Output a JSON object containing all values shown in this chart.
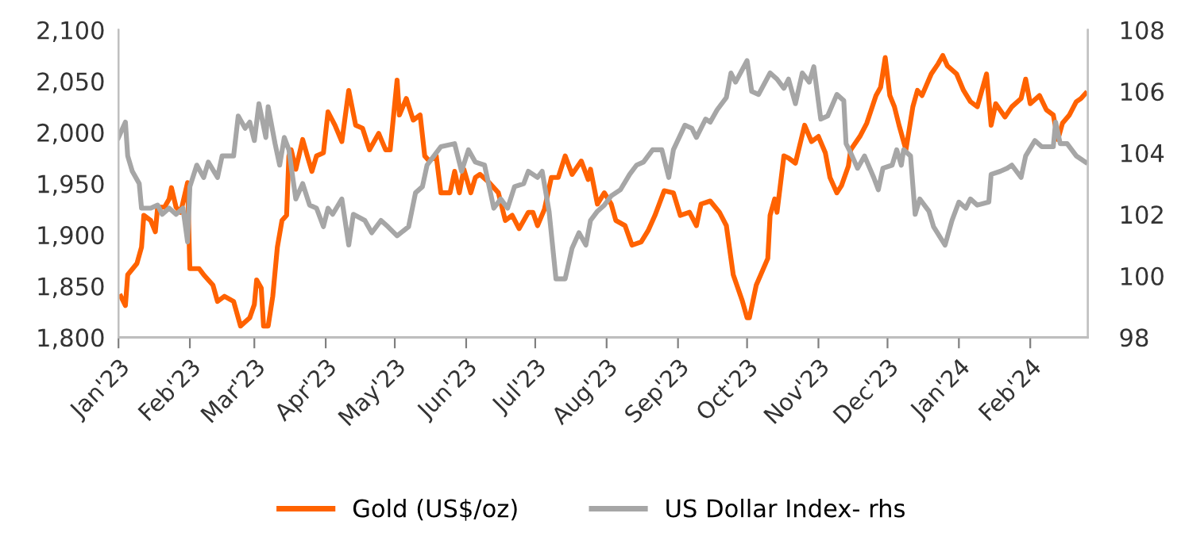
{
  "chart_data": {
    "type": "line",
    "xlim": [
      "2023-01-01",
      "2024-02-26"
    ],
    "xticks": [
      {
        "value": "2023-01-01",
        "label": "Jan'23"
      },
      {
        "value": "2023-02-01",
        "label": "Feb'23"
      },
      {
        "value": "2023-03-01",
        "label": "Mar'23"
      },
      {
        "value": "2023-04-01",
        "label": "Apr'23"
      },
      {
        "value": "2023-05-01",
        "label": "May'23"
      },
      {
        "value": "2023-06-01",
        "label": "Jun'23"
      },
      {
        "value": "2023-07-01",
        "label": "Jul'23"
      },
      {
        "value": "2023-08-01",
        "label": "Aug'23"
      },
      {
        "value": "2023-09-01",
        "label": "Sep'23"
      },
      {
        "value": "2023-10-01",
        "label": "Oct'23"
      },
      {
        "value": "2023-11-01",
        "label": "Nov'23"
      },
      {
        "value": "2023-12-01",
        "label": "Dec'23"
      },
      {
        "value": "2024-01-01",
        "label": "Jan'24"
      },
      {
        "value": "2024-02-01",
        "label": "Feb'24"
      }
    ],
    "ylim": [
      1800,
      2100
    ],
    "yticks": [
      {
        "value": 1800,
        "label": "1,800"
      },
      {
        "value": 1850,
        "label": "1,850"
      },
      {
        "value": 1900,
        "label": "1,900"
      },
      {
        "value": 1950,
        "label": "1,950"
      },
      {
        "value": 2000,
        "label": "2,000"
      },
      {
        "value": 2050,
        "label": "2,050"
      },
      {
        "value": 2100,
        "label": "2,100"
      }
    ],
    "y2lim": [
      98,
      108
    ],
    "y2ticks": [
      98,
      100,
      102,
      104,
      106,
      108
    ],
    "grid": false,
    "legend": "bottom",
    "marker": "none",
    "line_style": "solid",
    "series": [
      {
        "name": "Gold (US$/oz)",
        "color": "#ff6200",
        "axis": "y",
        "x": [
          "2023-01-02",
          "2023-01-04",
          "2023-01-05",
          "2023-01-09",
          "2023-01-11",
          "2023-01-12",
          "2023-01-15",
          "2023-01-17",
          "2023-01-18",
          "2023-01-21",
          "2023-01-23",
          "2023-01-24",
          "2023-01-26",
          "2023-01-28",
          "2023-01-31",
          "2023-02-01",
          "2023-02-05",
          "2023-02-07",
          "2023-02-11",
          "2023-02-13",
          "2023-02-16",
          "2023-02-20",
          "2023-02-23",
          "2023-02-27",
          "2023-03-01",
          "2023-03-02",
          "2023-03-04",
          "2023-03-05",
          "2023-03-07",
          "2023-03-09",
          "2023-03-11",
          "2023-03-13",
          "2023-03-15",
          "2023-03-16",
          "2023-03-17",
          "2023-03-19",
          "2023-03-22",
          "2023-03-24",
          "2023-03-26",
          "2023-03-28",
          "2023-03-31",
          "2023-04-02",
          "2023-04-05",
          "2023-04-08",
          "2023-04-11",
          "2023-04-14",
          "2023-04-17",
          "2023-04-20",
          "2023-04-24",
          "2023-04-27",
          "2023-04-29",
          "2023-05-02",
          "2023-05-03",
          "2023-05-06",
          "2023-05-09",
          "2023-05-12",
          "2023-05-14",
          "2023-05-16",
          "2023-05-19",
          "2023-05-21",
          "2023-05-25",
          "2023-05-27",
          "2023-05-29",
          "2023-05-31",
          "2023-06-03",
          "2023-06-05",
          "2023-06-07",
          "2023-06-11",
          "2023-06-15",
          "2023-06-18",
          "2023-06-21",
          "2023-06-24",
          "2023-06-28",
          "2023-06-30",
          "2023-07-02",
          "2023-07-05",
          "2023-07-08",
          "2023-07-11",
          "2023-07-14",
          "2023-07-17",
          "2023-07-21",
          "2023-07-24",
          "2023-07-25",
          "2023-07-28",
          "2023-07-31",
          "2023-08-03",
          "2023-08-05",
          "2023-08-09",
          "2023-08-12",
          "2023-08-16",
          "2023-08-19",
          "2023-08-22",
          "2023-08-26",
          "2023-08-30",
          "2023-09-02",
          "2023-09-06",
          "2023-09-09",
          "2023-09-11",
          "2023-09-15",
          "2023-09-19",
          "2023-09-22",
          "2023-09-25",
          "2023-09-29",
          "2023-10-01",
          "2023-10-02",
          "2023-10-05",
          "2023-10-10",
          "2023-10-11",
          "2023-10-13",
          "2023-10-14",
          "2023-10-17",
          "2023-10-19",
          "2023-10-22",
          "2023-10-26",
          "2023-10-29",
          "2023-11-01",
          "2023-11-04",
          "2023-11-06",
          "2023-11-09",
          "2023-11-11",
          "2023-11-14",
          "2023-11-15",
          "2023-11-19",
          "2023-11-22",
          "2023-11-26",
          "2023-11-28",
          "2023-11-30",
          "2023-12-02",
          "2023-12-04",
          "2023-12-06",
          "2023-12-09",
          "2023-12-12",
          "2023-12-14",
          "2023-12-16",
          "2023-12-20",
          "2023-12-23",
          "2023-12-25",
          "2023-12-27",
          "2023-12-31",
          "2024-01-03",
          "2024-01-06",
          "2024-01-09",
          "2024-01-13",
          "2024-01-15",
          "2024-01-17",
          "2024-01-21",
          "2024-01-24",
          "2024-01-28",
          "2024-01-30",
          "2024-02-01",
          "2024-02-05",
          "2024-02-08",
          "2024-02-11",
          "2024-02-13",
          "2024-02-15",
          "2024-02-18",
          "2024-02-21",
          "2024-02-23",
          "2024-02-25"
        ],
        "values": [
          1840,
          1831,
          1861,
          1872,
          1888,
          1919,
          1914,
          1903,
          1927,
          1927,
          1935,
          1946,
          1927,
          1922,
          1951,
          1867,
          1867,
          1861,
          1851,
          1835,
          1840,
          1835,
          1811,
          1819,
          1832,
          1856,
          1848,
          1811,
          1811,
          1840,
          1888,
          1914,
          1919,
          1977,
          1983,
          1964,
          1993,
          1977,
          1962,
          1977,
          1980,
          2020,
          2007,
          1991,
          2041,
          2007,
          2004,
          1983,
          1999,
          1983,
          1983,
          2051,
          2017,
          2033,
          2012,
          2017,
          1977,
          1972,
          1977,
          1941,
          1941,
          1962,
          1941,
          1964,
          1941,
          1956,
          1959,
          1951,
          1941,
          1914,
          1919,
          1906,
          1922,
          1922,
          1909,
          1925,
          1956,
          1956,
          1977,
          1959,
          1972,
          1954,
          1964,
          1930,
          1941,
          1930,
          1914,
          1909,
          1890,
          1893,
          1904,
          1919,
          1943,
          1941,
          1919,
          1922,
          1909,
          1930,
          1933,
          1922,
          1909,
          1861,
          1835,
          1819,
          1819,
          1851,
          1877,
          1919,
          1935,
          1922,
          1977,
          1975,
          1970,
          2007,
          1991,
          1996,
          1980,
          1956,
          1941,
          1948,
          1967,
          1983,
          1996,
          2009,
          2036,
          2044,
          2073,
          2036,
          2025,
          2007,
          1983,
          2025,
          2041,
          2036,
          2057,
          2067,
          2075,
          2065,
          2057,
          2041,
          2030,
          2025,
          2057,
          2007,
          2028,
          2015,
          2025,
          2033,
          2052,
          2028,
          2036,
          2022,
          2017,
          1993,
          2009,
          2017,
          2030,
          2033,
          2038
        ]
      },
      {
        "name": "US Dollar Index- rhs",
        "color": "#a6a6a6",
        "axis": "y2",
        "x": [
          "2023-01-01",
          "2023-01-04",
          "2023-01-05",
          "2023-01-07",
          "2023-01-10",
          "2023-01-11",
          "2023-01-15",
          "2023-01-18",
          "2023-01-20",
          "2023-01-23",
          "2023-01-26",
          "2023-01-29",
          "2023-01-31",
          "2023-02-01",
          "2023-02-04",
          "2023-02-07",
          "2023-02-09",
          "2023-02-13",
          "2023-02-15",
          "2023-02-20",
          "2023-02-22",
          "2023-02-25",
          "2023-02-27",
          "2023-03-01",
          "2023-03-03",
          "2023-03-06",
          "2023-03-07",
          "2023-03-10",
          "2023-03-12",
          "2023-03-14",
          "2023-03-16",
          "2023-03-19",
          "2023-03-22",
          "2023-03-25",
          "2023-03-28",
          "2023-03-31",
          "2023-04-02",
          "2023-04-04",
          "2023-04-08",
          "2023-04-11",
          "2023-04-13",
          "2023-04-18",
          "2023-04-21",
          "2023-04-25",
          "2023-04-28",
          "2023-05-02",
          "2023-05-07",
          "2023-05-10",
          "2023-05-13",
          "2023-05-15",
          "2023-05-18",
          "2023-05-21",
          "2023-05-27",
          "2023-05-30",
          "2023-06-02",
          "2023-06-05",
          "2023-06-09",
          "2023-06-13",
          "2023-06-16",
          "2023-06-19",
          "2023-06-22",
          "2023-06-26",
          "2023-06-28",
          "2023-07-02",
          "2023-07-04",
          "2023-07-07",
          "2023-07-10",
          "2023-07-14",
          "2023-07-17",
          "2023-07-20",
          "2023-07-23",
          "2023-07-25",
          "2023-07-28",
          "2023-07-31",
          "2023-08-03",
          "2023-08-07",
          "2023-08-11",
          "2023-08-14",
          "2023-08-17",
          "2023-08-21",
          "2023-08-25",
          "2023-08-28",
          "2023-08-30",
          "2023-09-04",
          "2023-09-07",
          "2023-09-09",
          "2023-09-13",
          "2023-09-15",
          "2023-09-18",
          "2023-09-22",
          "2023-09-24",
          "2023-09-26",
          "2023-10-01",
          "2023-10-03",
          "2023-10-06",
          "2023-10-11",
          "2023-10-14",
          "2023-10-17",
          "2023-10-19",
          "2023-10-22",
          "2023-10-25",
          "2023-10-28",
          "2023-10-30",
          "2023-11-02",
          "2023-11-05",
          "2023-11-09",
          "2023-11-12",
          "2023-11-13",
          "2023-11-15",
          "2023-11-18",
          "2023-11-21",
          "2023-11-25",
          "2023-11-27",
          "2023-11-29",
          "2023-12-03",
          "2023-12-05",
          "2023-12-07",
          "2023-12-08",
          "2023-12-11",
          "2023-12-13",
          "2023-12-15",
          "2023-12-19",
          "2023-12-21",
          "2023-12-26",
          "2023-12-29",
          "2024-01-01",
          "2024-01-04",
          "2024-01-06",
          "2024-01-09",
          "2024-01-14",
          "2024-01-15",
          "2024-01-19",
          "2024-01-22",
          "2024-01-24",
          "2024-01-28",
          "2024-01-30",
          "2024-02-03",
          "2024-02-06",
          "2024-02-11",
          "2024-02-12",
          "2024-02-14",
          "2024-02-17",
          "2024-02-21",
          "2024-02-25"
        ],
        "values": [
          104.5,
          105.0,
          103.9,
          103.4,
          103.0,
          102.2,
          102.2,
          102.3,
          102.0,
          102.2,
          102.0,
          102.2,
          101.1,
          102.9,
          103.6,
          103.2,
          103.7,
          103.2,
          103.9,
          103.9,
          105.2,
          104.8,
          105.0,
          104.4,
          105.6,
          104.5,
          105.5,
          104.3,
          103.6,
          104.5,
          104.1,
          102.5,
          103.0,
          102.3,
          102.2,
          101.6,
          102.2,
          102.0,
          102.5,
          101.0,
          102.0,
          101.8,
          101.4,
          101.8,
          101.6,
          101.3,
          101.6,
          102.7,
          102.9,
          103.6,
          103.9,
          104.2,
          104.3,
          103.4,
          104.1,
          103.7,
          103.6,
          102.2,
          102.5,
          102.2,
          102.9,
          103.0,
          103.4,
          103.2,
          103.4,
          102.1,
          99.9,
          99.9,
          100.9,
          101.4,
          101.0,
          101.8,
          102.1,
          102.3,
          102.6,
          102.8,
          103.3,
          103.6,
          103.7,
          104.1,
          104.1,
          103.2,
          104.1,
          104.9,
          104.8,
          104.5,
          105.1,
          105.0,
          105.4,
          105.8,
          106.6,
          106.3,
          107.0,
          106.0,
          105.9,
          106.6,
          106.4,
          106.1,
          106.4,
          105.6,
          106.6,
          106.3,
          106.8,
          105.1,
          105.2,
          105.9,
          105.7,
          104.3,
          104.0,
          103.5,
          103.9,
          103.2,
          102.8,
          103.5,
          103.6,
          104.1,
          103.6,
          104.1,
          103.9,
          102.0,
          102.5,
          102.1,
          101.6,
          101.0,
          101.8,
          102.4,
          102.2,
          102.5,
          102.3,
          102.4,
          103.3,
          103.4,
          103.5,
          103.6,
          103.2,
          103.9,
          104.4,
          104.2,
          104.2,
          105.0,
          104.3,
          104.3,
          103.9,
          103.7
        ]
      }
    ]
  }
}
